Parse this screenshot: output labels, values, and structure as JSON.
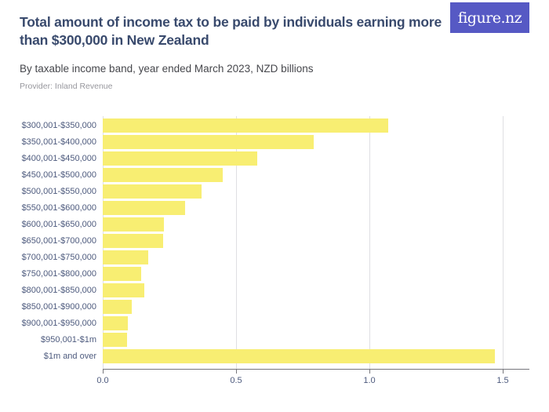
{
  "header": {
    "title": "Total amount of income tax to be paid by individuals earning more\nthan $300,000 in New Zealand",
    "subtitle": "By taxable income band, year ended March 2023, NZD billions",
    "provider": "Provider: Inland Revenue",
    "logo_text": "figure.nz"
  },
  "chart_data": {
    "type": "bar",
    "orientation": "horizontal",
    "title": "Total amount of income tax to be paid by individuals earning more than $300,000 in New Zealand",
    "subtitle": "By taxable income band, year ended March 2023, NZD billions",
    "unit": "NZD billions",
    "xlabel": "",
    "xlim": [
      0,
      1.6
    ],
    "xticks": [
      0,
      0.5,
      1.0,
      1.5
    ],
    "xtick_labels": [
      "0.0",
      "0.5",
      "1.0",
      "1.5"
    ],
    "grid": "vertical",
    "legend": "none",
    "categories": [
      "$300,001-$350,000",
      "$350,001-$400,000",
      "$400,001-$450,000",
      "$450,001-$500,000",
      "$500,001-$550,000",
      "$550,001-$600,000",
      "$600,001-$650,000",
      "$650,001-$700,000",
      "$700,001-$750,000",
      "$750,001-$800,000",
      "$800,001-$850,000",
      "$850,001-$900,000",
      "$900,001-$950,000",
      "$950,001-$1m",
      "$1m and over"
    ],
    "values": [
      1.07,
      0.79,
      0.58,
      0.45,
      0.37,
      0.31,
      0.23,
      0.225,
      0.17,
      0.145,
      0.155,
      0.11,
      0.095,
      0.09,
      1.47
    ]
  },
  "colors": {
    "background": "#ffffff",
    "title": "#394a6d",
    "subtitle": "#46474c",
    "provider": "#97979d",
    "axis_label": "#4e5b7e",
    "gridline": "#dfdfe3",
    "axis_line": "#77777c",
    "bar": "#f8ee72",
    "logo_bg": "#5659c4",
    "logo_text": "#ffffff"
  }
}
